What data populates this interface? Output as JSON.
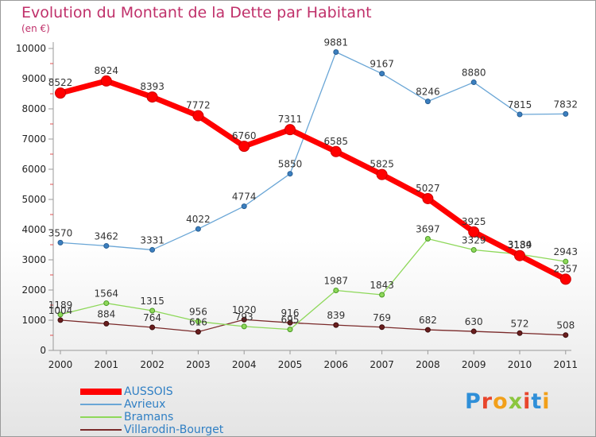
{
  "header": {
    "title": "Evolution du Montant de la Dette par Habitant",
    "subtitle": "(en €)"
  },
  "logo": {
    "text": "Proxiti"
  },
  "chart_data": {
    "type": "line",
    "title": "Evolution du Montant de la Dette par Habitant",
    "subtitle": "(en €)",
    "xlabel": "",
    "ylabel": "",
    "categories": [
      "2000",
      "2001",
      "2002",
      "2003",
      "2004",
      "2005",
      "2006",
      "2007",
      "2008",
      "2009",
      "2010",
      "2011"
    ],
    "ylim": [
      0,
      10000
    ],
    "yticks": [
      0,
      1000,
      2000,
      3000,
      4000,
      5000,
      6000,
      7000,
      8000,
      9000,
      10000
    ],
    "grid": false,
    "legend_position": "bottom-left",
    "series": [
      {
        "name": "AUSSOIS",
        "color": "#ff0000",
        "values": [
          8522,
          8924,
          8393,
          7772,
          6760,
          7311,
          6585,
          5825,
          5027,
          3925,
          3139,
          2357
        ]
      },
      {
        "name": "Avrieux",
        "color": "#6aa6d6",
        "values": [
          3570,
          3462,
          3331,
          4022,
          4774,
          5850,
          9881,
          9167,
          8246,
          8880,
          7815,
          7832
        ]
      },
      {
        "name": "Bramans",
        "color": "#8ed85a",
        "values": [
          1189,
          1564,
          1315,
          956,
          793,
          695,
          1987,
          1843,
          3697,
          3329,
          3184,
          2943
        ]
      },
      {
        "name": "Villarodin-Bourget",
        "color": "#7a2a2a",
        "values": [
          1004,
          884,
          764,
          616,
          1020,
          916,
          839,
          769,
          682,
          630,
          572,
          508
        ]
      }
    ]
  }
}
